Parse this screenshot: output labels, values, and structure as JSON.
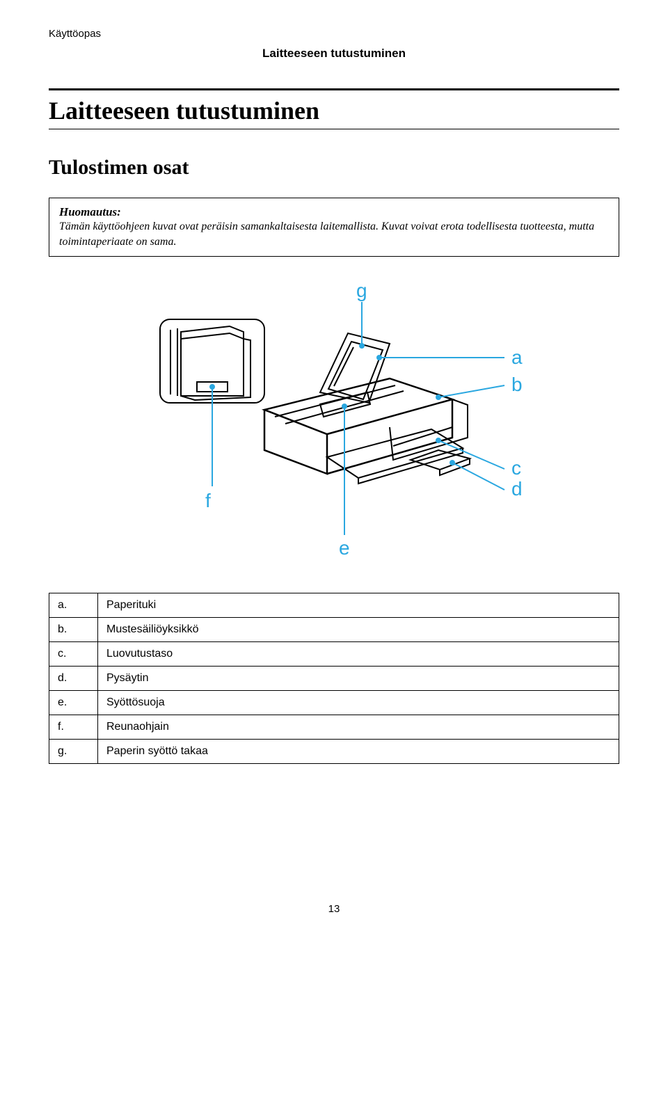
{
  "header": {
    "doc": "Käyttöopas",
    "section": "Laitteeseen tutustuminen"
  },
  "title": "Laitteeseen tutustuminen",
  "subsection": "Tulostimen osat",
  "note": {
    "title": "Huomautus:",
    "body": "Tämän käyttöohjeen kuvat ovat peräisin samankaltaisesta laitemallista. Kuvat voivat erota todellisesta tuotteesta, mutta toimintaperiaate on sama."
  },
  "diagram": {
    "labels": {
      "a": "a",
      "b": "b",
      "c": "c",
      "d": "d",
      "e": "e",
      "f": "f",
      "g": "g"
    },
    "callout_color": "#2aa7e0",
    "line_color": "#000000"
  },
  "parts": [
    {
      "letter": "a.",
      "name": "Paperituki"
    },
    {
      "letter": "b.",
      "name": "Mustesäiliöyksikkö"
    },
    {
      "letter": "c.",
      "name": "Luovutustaso"
    },
    {
      "letter": "d.",
      "name": "Pysäytin"
    },
    {
      "letter": "e.",
      "name": "Syöttösuoja"
    },
    {
      "letter": "f.",
      "name": "Reunaohjain"
    },
    {
      "letter": "g.",
      "name": "Paperin syöttö takaa"
    }
  ],
  "page_number": "13"
}
